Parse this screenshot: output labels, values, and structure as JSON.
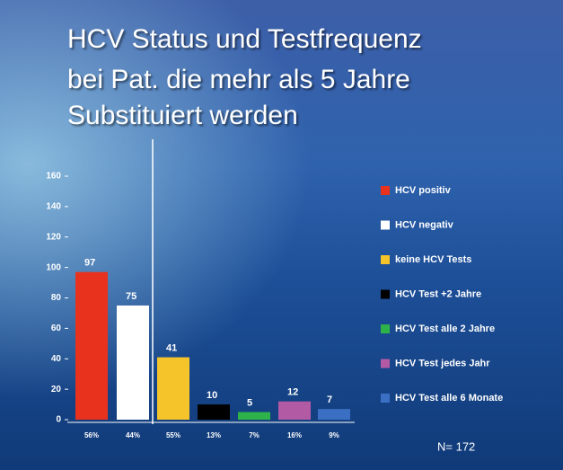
{
  "chart_data": {
    "type": "bar",
    "title": [
      "HCV Status und Testfrequenz",
      "bei Pat. die mehr als 5 Jahre",
      "Substituiert werden"
    ],
    "categories": [
      "56%",
      "44%",
      "55%",
      "13%",
      "7%",
      "16%",
      "9%"
    ],
    "values": [
      97,
      75,
      41,
      10,
      5,
      12,
      7
    ],
    "labels": [
      "HCV positiv",
      "HCV negativ",
      "keine HCV Tests",
      "HCV Test +2 Jahre",
      "HCV Test alle 2 Jahre",
      "HCV Test jedes Jahr",
      "HCV Test alle 6 Monate"
    ],
    "colors": [
      "#e8321e",
      "#ffffff",
      "#f5c42a",
      "#000000",
      "#2db34a",
      "#b35aa5",
      "#3a6fc4"
    ],
    "ylim": [
      0,
      160
    ],
    "yticks": [
      0,
      20,
      40,
      60,
      80,
      100,
      120,
      140,
      160
    ],
    "annotation": "N= 172"
  }
}
